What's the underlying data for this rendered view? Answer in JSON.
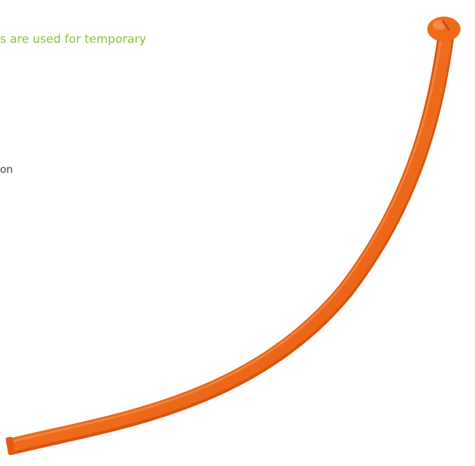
{
  "headline": "s are used for temporary",
  "fragment": "on"
}
